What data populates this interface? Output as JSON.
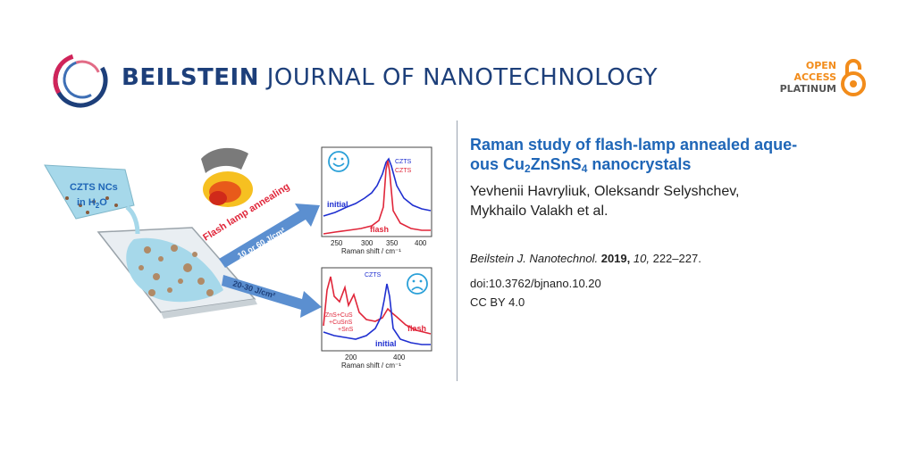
{
  "header": {
    "journal_name_bold": "BEILSTEIN",
    "journal_name_rest": "JOURNAL OF NANOTECHNOLOGY",
    "open_access": [
      "OPEN",
      "ACCESS",
      "PLATINUM"
    ],
    "logo_icon": "beilstein-ring-logo",
    "lock_icon": "open-lock-icon"
  },
  "article": {
    "title_part1": "Raman study of flash-lamp annealed aque-",
    "title_part2_prefix": "ous Cu",
    "title_sub1": "2",
    "title_mid": "ZnSnS",
    "title_sub2": "4",
    "title_suffix": " nanocrystals",
    "authors_line1": "Yevhenii Havryliuk, Oleksandr Selyshchev,",
    "authors_line2": "Mykhailo Valakh et al.",
    "citation": {
      "journal": "Beilstein J. Nanotechnol.",
      "year": "2019,",
      "volume": "10,",
      "pages": "222–227."
    },
    "doi": "doi:10.3762/bjnano.10.20",
    "license": "CC BY 4.0"
  },
  "graphic": {
    "beaker_label_1": "CZTS NCs",
    "beaker_label_2": "in H",
    "beaker_label_sub": "2",
    "beaker_label_3": "O",
    "lamp_label": "Flash lamp annealing",
    "arrow1_label": "10 or 60 J/cm²",
    "arrow2_label": "20-30 J/cm²",
    "colors": {
      "initial": "#1f2fd0",
      "flash": "#e0263a",
      "arrow": "#5b8fd0",
      "accent": "#1f66b7"
    },
    "chart_top": {
      "legend": [
        "CZTS",
        "CZTS"
      ],
      "labels": {
        "initial": "initial",
        "flash": "flash"
      },
      "ticks": [
        "250",
        "300",
        "350",
        "400"
      ],
      "xlabel": "Raman shift / cm⁻¹",
      "face": "happy-face-icon"
    },
    "chart_bottom": {
      "legend": "CZTS",
      "phases": [
        "ZnS+CuS",
        "+CuSnS",
        "+SnS"
      ],
      "labels": {
        "initial": "initial",
        "flash": "flash"
      },
      "ticks": [
        "200",
        "400"
      ],
      "xlabel": "Raman shift / cm⁻¹",
      "face": "sad-face-icon"
    }
  }
}
